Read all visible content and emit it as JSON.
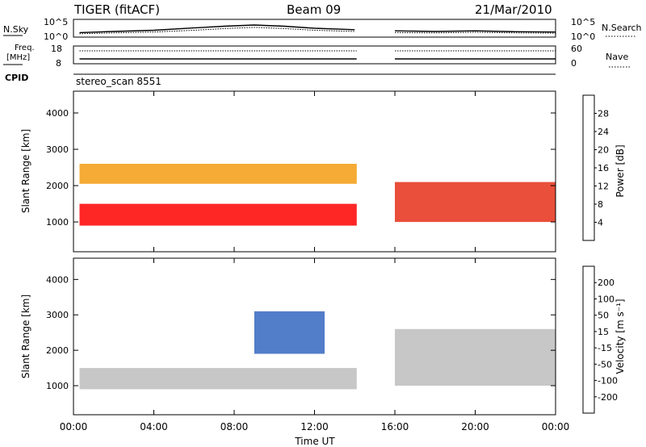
{
  "header": {
    "title": "TIGER (fitACF)",
    "beam": "Beam 09",
    "date": "21/Mar/2010"
  },
  "sky_panel": {
    "left_label": "N.Sky",
    "right_label": "N.Search",
    "left_ticks": [
      "10^5",
      "10^0"
    ],
    "right_ticks": [
      "10^5",
      "10^0"
    ]
  },
  "freq_panel": {
    "left_label_1": "Freq.",
    "left_label_2": "[MHz]",
    "right_label": "Nave",
    "left_ticks": [
      "18",
      "8"
    ],
    "right_ticks": [
      "60",
      "0"
    ]
  },
  "cpid": {
    "label": "CPID",
    "value": "stereo_scan 8551"
  },
  "power_panel": {
    "ylabel": "Slant Range [km]",
    "yticks": [
      "1000",
      "2000",
      "3000",
      "4000"
    ],
    "colorbar_label": "Power [dB]",
    "colorbar_ticks": [
      "4",
      "8",
      "12",
      "16",
      "20",
      "24",
      "28"
    ],
    "colorbar_colors": [
      "#0000ff",
      "#2f4fb0",
      "#2e8b57",
      "#66bb66",
      "#a8d44a",
      "#f4c430",
      "#f39c12",
      "#ee6a1c",
      "#e53017",
      "#ff0000"
    ]
  },
  "velocity_panel": {
    "ylabel": "Slant Range [km]",
    "yticks": [
      "1000",
      "2000",
      "3000",
      "4000"
    ],
    "colorbar_label": "Velocity [m s⁻¹]",
    "colorbar_ticks": [
      "200",
      "100",
      "50",
      "15",
      "-15",
      "-50",
      "-100",
      "-200"
    ],
    "colorbar_colors": [
      "#1a2fb0",
      "#3466c0",
      "#2e8b57",
      "#6acc3a",
      "#bdbdbd",
      "#f4c430",
      "#f39c12",
      "#e85d1b",
      "#e00000"
    ]
  },
  "x_axis": {
    "label": "Time UT",
    "ticks": [
      "00:00",
      "04:00",
      "08:00",
      "12:00",
      "16:00",
      "20:00",
      "00:00"
    ]
  },
  "chart_data": [
    {
      "type": "line",
      "title": "TIGER (fitACF)",
      "xlabel": "Time UT",
      "ylabel": "N.Sky",
      "x_range_hours": [
        0,
        24
      ],
      "data_gap_hours": [
        14.1,
        16.0
      ],
      "series": [
        {
          "name": "N.Sky",
          "x": [
            0.3,
            2,
            4,
            6,
            7.5,
            9,
            10.5,
            12,
            14,
            16,
            18,
            20,
            22,
            24
          ],
          "values": [
            1,
            1.4,
            1.8,
            2.6,
            3.2,
            3.6,
            3.2,
            2.5,
            2.0,
            1.6,
            1.4,
            1.6,
            1.3,
            1.2
          ]
        },
        {
          "name": "N.Search",
          "x": [
            0.3,
            2,
            4,
            6,
            7.5,
            9,
            10.5,
            12,
            14,
            16,
            18,
            20,
            22,
            24
          ],
          "values": [
            0.6,
            0.9,
            1.2,
            1.8,
            2.4,
            2.8,
            2.4,
            1.8,
            1.4,
            1.0,
            0.9,
            1.1,
            0.9,
            0.8
          ]
        }
      ]
    },
    {
      "type": "line",
      "xlabel": "Time UT",
      "ylabel": "Freq. [MHz]",
      "x_range_hours": [
        0,
        24
      ],
      "data_gap_hours": [
        14.1,
        16.0
      ],
      "series": [
        {
          "name": "Freq.",
          "x": [
            0.3,
            14.1,
            16.0,
            24
          ],
          "values": [
            10.5,
            10.5,
            10.5,
            10.5
          ]
        },
        {
          "name": "Nave",
          "x": [
            0.3,
            14.1,
            16.0,
            24
          ],
          "values": [
            45,
            45,
            45,
            45
          ]
        }
      ]
    },
    {
      "type": "heatmap",
      "ylabel": "Slant Range [km]",
      "xlabel": "Time UT",
      "x_range_hours": [
        0,
        24
      ],
      "y_range_km": [
        180,
        4600
      ],
      "colorbar": "Power [dB]",
      "value_range": [
        0,
        30
      ],
      "features": [
        {
          "label": "low band",
          "hours": [
            0.3,
            14.1
          ],
          "range_km": [
            900,
            1500
          ],
          "power_db": 27
        },
        {
          "label": "mid band",
          "hours": [
            0.3,
            14.1
          ],
          "range_km": [
            2050,
            2600
          ],
          "power_db": 20
        },
        {
          "label": "afternoon band",
          "hours": [
            16.0,
            24
          ],
          "range_km": [
            1000,
            2100
          ],
          "power_db": 26
        }
      ]
    },
    {
      "type": "heatmap",
      "ylabel": "Slant Range [km]",
      "xlabel": "Time UT",
      "x_range_hours": [
        0,
        24
      ],
      "y_range_km": [
        180,
        4600
      ],
      "colorbar": "Velocity [m s⁻¹]",
      "value_range": [
        -200,
        200
      ],
      "features": [
        {
          "label": "ground scatter band",
          "hours": [
            0.3,
            14.1
          ],
          "range_km": [
            900,
            1500
          ],
          "velocity": 0
        },
        {
          "label": "positive velocity patch",
          "hours": [
            9.0,
            12.5
          ],
          "range_km": [
            1900,
            3100
          ],
          "velocity": 120
        },
        {
          "label": "afternoon band",
          "hours": [
            16.0,
            24
          ],
          "range_km": [
            1000,
            2600
          ],
          "velocity": 0
        }
      ]
    }
  ]
}
